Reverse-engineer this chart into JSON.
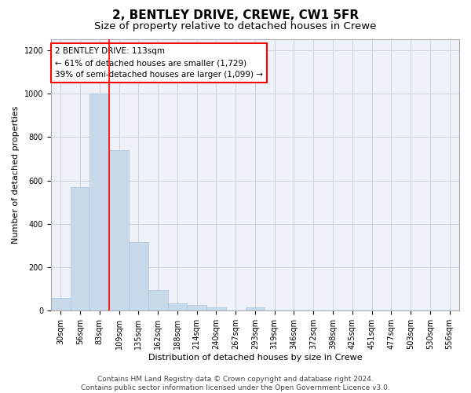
{
  "title": "2, BENTLEY DRIVE, CREWE, CW1 5FR",
  "subtitle": "Size of property relative to detached houses in Crewe",
  "xlabel": "Distribution of detached houses by size in Crewe",
  "ylabel": "Number of detached properties",
  "bar_color": "#c8daea",
  "bar_edge_color": "#a8c4de",
  "grid_color": "#c8d4e0",
  "background_color": "#eef2f8",
  "categories": [
    "30sqm",
    "56sqm",
    "83sqm",
    "109sqm",
    "135sqm",
    "162sqm",
    "188sqm",
    "214sqm",
    "240sqm",
    "267sqm",
    "293sqm",
    "319sqm",
    "346sqm",
    "372sqm",
    "398sqm",
    "425sqm",
    "451sqm",
    "477sqm",
    "503sqm",
    "530sqm",
    "556sqm"
  ],
  "values": [
    60,
    570,
    1000,
    740,
    315,
    95,
    35,
    25,
    15,
    0,
    15,
    0,
    0,
    0,
    0,
    0,
    0,
    0,
    0,
    0,
    0
  ],
  "red_line_bin_index": 3,
  "annotation_text": "2 BENTLEY DRIVE: 113sqm\n← 61% of detached houses are smaller (1,729)\n39% of semi-detached houses are larger (1,099) →",
  "ylim": [
    0,
    1250
  ],
  "yticks": [
    0,
    200,
    400,
    600,
    800,
    1000,
    1200
  ],
  "footer_line1": "Contains HM Land Registry data © Crown copyright and database right 2024.",
  "footer_line2": "Contains public sector information licensed under the Open Government Licence v3.0.",
  "title_fontsize": 11,
  "subtitle_fontsize": 9.5,
  "annotation_fontsize": 7.5,
  "axis_label_fontsize": 8,
  "tick_fontsize": 7,
  "footer_fontsize": 6.5
}
